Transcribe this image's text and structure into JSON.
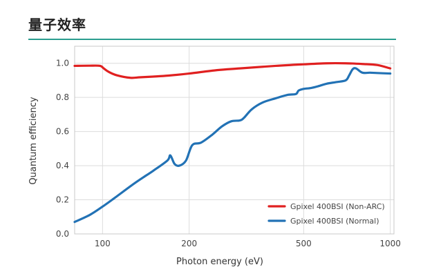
{
  "page": {
    "title": "量子效率",
    "rule_color": "#2a9d8f"
  },
  "chart_data": {
    "type": "line",
    "title": "",
    "xlabel": "Photon energy (eV)",
    "ylabel": "Quantum efficiency",
    "xscale": "log",
    "xlim": [
      80,
      1030
    ],
    "ylim": [
      0,
      1.1
    ],
    "x_ticks": [
      100,
      200,
      500,
      1000
    ],
    "x_tick_labels": [
      "100",
      "200",
      "500",
      "1000"
    ],
    "y_ticks": [
      0.0,
      0.2,
      0.4,
      0.6,
      0.8,
      1.0
    ],
    "y_tick_labels": [
      "0.0",
      "0.2",
      "0.4",
      "0.6",
      "0.8",
      "1.0"
    ],
    "grid": true,
    "legend_position": "bottom-right",
    "series": [
      {
        "name": "Gpixel 400BSI (Non-ARC)",
        "color": "#e02020",
        "x": [
          80,
          90,
          98,
          101,
          105,
          112,
          125,
          135,
          150,
          170,
          200,
          250,
          300,
          400,
          500,
          600,
          700,
          800,
          900,
          1000
        ],
        "y": [
          0.985,
          0.986,
          0.985,
          0.97,
          0.95,
          0.93,
          0.915,
          0.918,
          0.922,
          0.928,
          0.94,
          0.96,
          0.97,
          0.985,
          0.994,
          1.0,
          1.0,
          0.996,
          0.99,
          0.97
        ]
      },
      {
        "name": "Gpixel 400BSI (Normal)",
        "color": "#2272b5",
        "x": [
          80,
          90,
          100,
          110,
          130,
          150,
          168,
          172,
          178,
          185,
          195,
          205,
          220,
          240,
          260,
          280,
          300,
          310,
          330,
          360,
          400,
          440,
          470,
          480,
          500,
          530,
          560,
          600,
          650,
          700,
          720,
          740,
          760,
          800,
          850,
          900,
          1000
        ],
        "y": [
          0.07,
          0.11,
          0.16,
          0.21,
          0.3,
          0.37,
          0.43,
          0.46,
          0.41,
          0.4,
          0.43,
          0.52,
          0.535,
          0.58,
          0.63,
          0.66,
          0.665,
          0.68,
          0.73,
          0.77,
          0.795,
          0.815,
          0.82,
          0.84,
          0.85,
          0.855,
          0.865,
          0.88,
          0.89,
          0.9,
          0.93,
          0.965,
          0.97,
          0.945,
          0.945,
          0.943,
          0.94
        ]
      }
    ]
  }
}
